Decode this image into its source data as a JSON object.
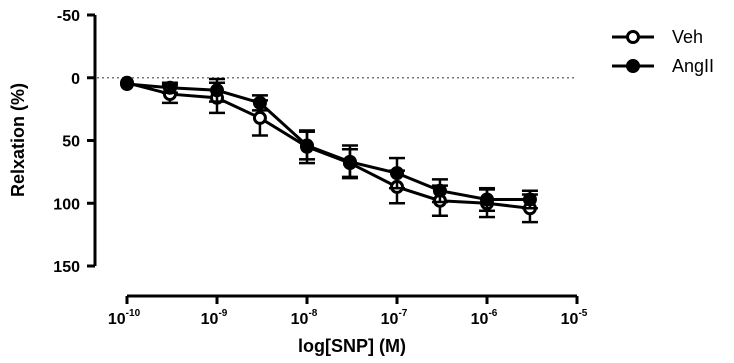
{
  "chart_data": {
    "type": "line",
    "xlabel": "log[SNP] (M)",
    "ylabel": "Relxation (%)",
    "x_scale": "log",
    "xlim": [
      1e-10,
      1e-05
    ],
    "ylim": [
      150,
      -50
    ],
    "y_inverted": true,
    "x_ticks": [
      {
        "base": "10",
        "exp": "-10",
        "value": 1e-10
      },
      {
        "base": "10",
        "exp": "-9",
        "value": 1e-09
      },
      {
        "base": "10",
        "exp": "-8",
        "value": 1e-08
      },
      {
        "base": "10",
        "exp": "-7",
        "value": 1e-07
      },
      {
        "base": "10",
        "exp": "-6",
        "value": 1e-06
      },
      {
        "base": "10",
        "exp": "-5",
        "value": 1e-05
      }
    ],
    "y_ticks": [
      {
        "label": "-50",
        "value": -50
      },
      {
        "label": "0",
        "value": 0
      },
      {
        "label": "50",
        "value": 50
      },
      {
        "label": "100",
        "value": 100
      },
      {
        "label": "150",
        "value": 150
      }
    ],
    "reference_line": {
      "y": 0,
      "style": "dotted"
    },
    "x": [
      1e-10,
      3e-10,
      1e-09,
      3e-09,
      1e-08,
      3e-08,
      1e-07,
      3e-07,
      1e-06,
      3e-06
    ],
    "series": [
      {
        "name": "Veh",
        "marker": "open-circle",
        "color": "#000000",
        "values": [
          4,
          13,
          16,
          32,
          55,
          68,
          87,
          98,
          100,
          104
        ],
        "errors": [
          0,
          7,
          12,
          14,
          13,
          11,
          13,
          12,
          11,
          11
        ]
      },
      {
        "name": "AngII",
        "marker": "filled-circle",
        "color": "#000000",
        "values": [
          5,
          8,
          10,
          20,
          54,
          67,
          76,
          90,
          97,
          97
        ],
        "errors": [
          0,
          4,
          9,
          6,
          11,
          13,
          12,
          9,
          9,
          7
        ]
      }
    ],
    "legend_position": "top-right"
  }
}
